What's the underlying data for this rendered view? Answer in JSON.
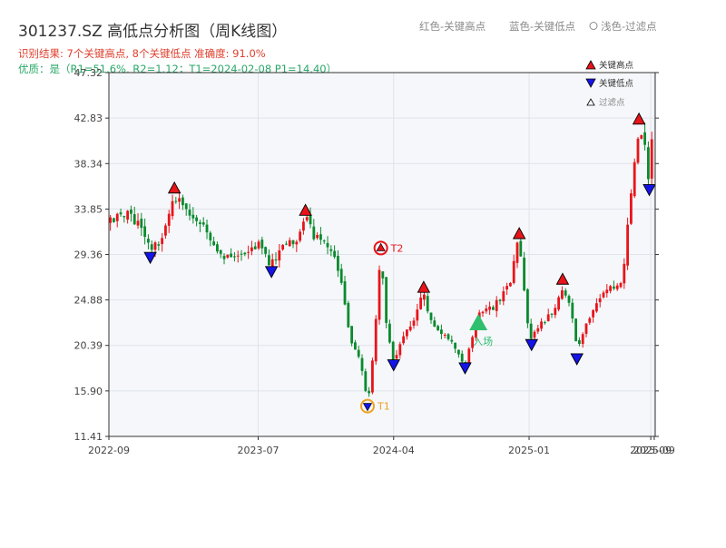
{
  "header": {
    "title": "301237.SZ 高低点分析图（周K线图）",
    "result_line": "识别结果: 7个关键高点, 8个关键低点  准确度: 91.0%",
    "quality_line": "优质：是（R1=51.6%, R2=1.12；T1=2024-02-08 P1=14.40）",
    "legend_inline": [
      "红色-关键高点",
      "蓝色-关键低点",
      "浅色-过滤点"
    ]
  },
  "legend": {
    "items": [
      {
        "label": "关键高点",
        "color": "#e8141a",
        "shape": "triangle-up"
      },
      {
        "label": "关键低点",
        "color": "#1414e8",
        "shape": "triangle-down"
      },
      {
        "label": "过滤点",
        "color": "#ffffff",
        "shape": "triangle-up"
      }
    ]
  },
  "chart_data": {
    "type": "candlestick",
    "yticks": [
      11.41,
      15.9,
      20.39,
      24.88,
      29.36,
      33.85,
      38.34,
      42.83,
      47.32
    ],
    "ylim": [
      11.41,
      47.32
    ],
    "xticks": [
      {
        "label": "2022-09",
        "date": "2022-09-01"
      },
      {
        "label": "2023-07",
        "date": "2023-07-01"
      },
      {
        "label": "2024-04",
        "date": "2024-04-01"
      },
      {
        "label": "2025-01",
        "date": "2025-01-01"
      },
      {
        "label": "2025-09",
        "date": "2025-09-05"
      },
      {
        "label": "2025-09",
        "date": "2025-09-12"
      }
    ],
    "xlim": [
      "2022-09-01",
      "2025-09-14"
    ],
    "grid": true,
    "colors": {
      "up": "#e8141a",
      "down": "#0a8a2e"
    },
    "price_path": [
      [
        "2022-09-01",
        32.5
      ],
      [
        "2022-10-10",
        33.2
      ],
      [
        "2022-11-05",
        32.5
      ],
      [
        "2022-11-24",
        29.6
      ],
      [
        "2022-12-15",
        31.0
      ],
      [
        "2023-01-12",
        35.2
      ],
      [
        "2023-02-20",
        32.8
      ],
      [
        "2023-03-20",
        31.5
      ],
      [
        "2023-04-15",
        29.3
      ],
      [
        "2023-06-01",
        29.8
      ],
      [
        "2023-07-01",
        30.2
      ],
      [
        "2023-07-28",
        28.2
      ],
      [
        "2023-08-20",
        30.5
      ],
      [
        "2023-09-15",
        30.8
      ],
      [
        "2023-10-05",
        33.2
      ],
      [
        "2023-10-25",
        31.0
      ],
      [
        "2023-11-20",
        30.2
      ],
      [
        "2023-12-15",
        27.5
      ],
      [
        "2024-01-08",
        20.0
      ],
      [
        "2024-01-25",
        19.0
      ],
      [
        "2024-02-08",
        14.6
      ],
      [
        "2024-02-20",
        19.5
      ],
      [
        "2024-03-06",
        29.7
      ],
      [
        "2024-03-15",
        23.0
      ],
      [
        "2024-04-01",
        19.0
      ],
      [
        "2024-04-20",
        21.5
      ],
      [
        "2024-05-10",
        22.5
      ],
      [
        "2024-06-01",
        25.6
      ],
      [
        "2024-06-20",
        22.0
      ],
      [
        "2024-07-20",
        21.0
      ],
      [
        "2024-08-24",
        18.6
      ],
      [
        "2024-09-20",
        23.5
      ],
      [
        "2024-10-20",
        24.2
      ],
      [
        "2024-11-20",
        26.0
      ],
      [
        "2024-12-12",
        30.9
      ],
      [
        "2024-12-28",
        23.0
      ],
      [
        "2025-01-06",
        21.0
      ],
      [
        "2025-01-25",
        22.5
      ],
      [
        "2025-02-20",
        24.0
      ],
      [
        "2025-03-10",
        26.4
      ],
      [
        "2025-04-01",
        23.0
      ],
      [
        "2025-04-08",
        19.5
      ],
      [
        "2025-04-25",
        22.5
      ],
      [
        "2025-05-20",
        25.0
      ],
      [
        "2025-06-20",
        26.0
      ],
      [
        "2025-07-10",
        27.0
      ],
      [
        "2025-07-20",
        32.0
      ],
      [
        "2025-08-01",
        38.0
      ],
      [
        "2025-08-12",
        42.2
      ],
      [
        "2025-08-25",
        39.5
      ],
      [
        "2025-09-02",
        36.2
      ],
      [
        "2025-09-08",
        41.0
      ],
      [
        "2025-09-14",
        43.5
      ]
    ],
    "key_highs": [
      {
        "date": "2023-01-12",
        "price": 35.7
      },
      {
        "date": "2023-10-05",
        "price": 33.5
      },
      {
        "date": "2024-06-01",
        "price": 25.9
      },
      {
        "date": "2024-12-12",
        "price": 31.2
      },
      {
        "date": "2025-03-10",
        "price": 26.7
      },
      {
        "date": "2025-08-12",
        "price": 42.5
      }
    ],
    "key_lows": [
      {
        "date": "2022-11-24",
        "price": 29.3
      },
      {
        "date": "2023-07-28",
        "price": 27.9
      },
      {
        "date": "2024-04-01",
        "price": 18.7
      },
      {
        "date": "2024-08-24",
        "price": 18.4
      },
      {
        "date": "2025-01-06",
        "price": 20.7
      },
      {
        "date": "2025-04-08",
        "price": 19.3
      },
      {
        "date": "2025-09-02",
        "price": 36.0
      }
    ],
    "annotations": [
      {
        "label": "T1",
        "date": "2024-02-08",
        "price": 14.4,
        "color": "#f0a020",
        "marker": "circle-triangle-down"
      },
      {
        "label": "T2",
        "date": "2024-03-06",
        "price": 30.0,
        "color": "#e8141a",
        "marker": "circle-triangle-up"
      },
      {
        "label": "入场",
        "date": "2024-09-20",
        "price": 22.6,
        "color": "#2fbf6f",
        "marker": "big-triangle-up"
      }
    ]
  }
}
